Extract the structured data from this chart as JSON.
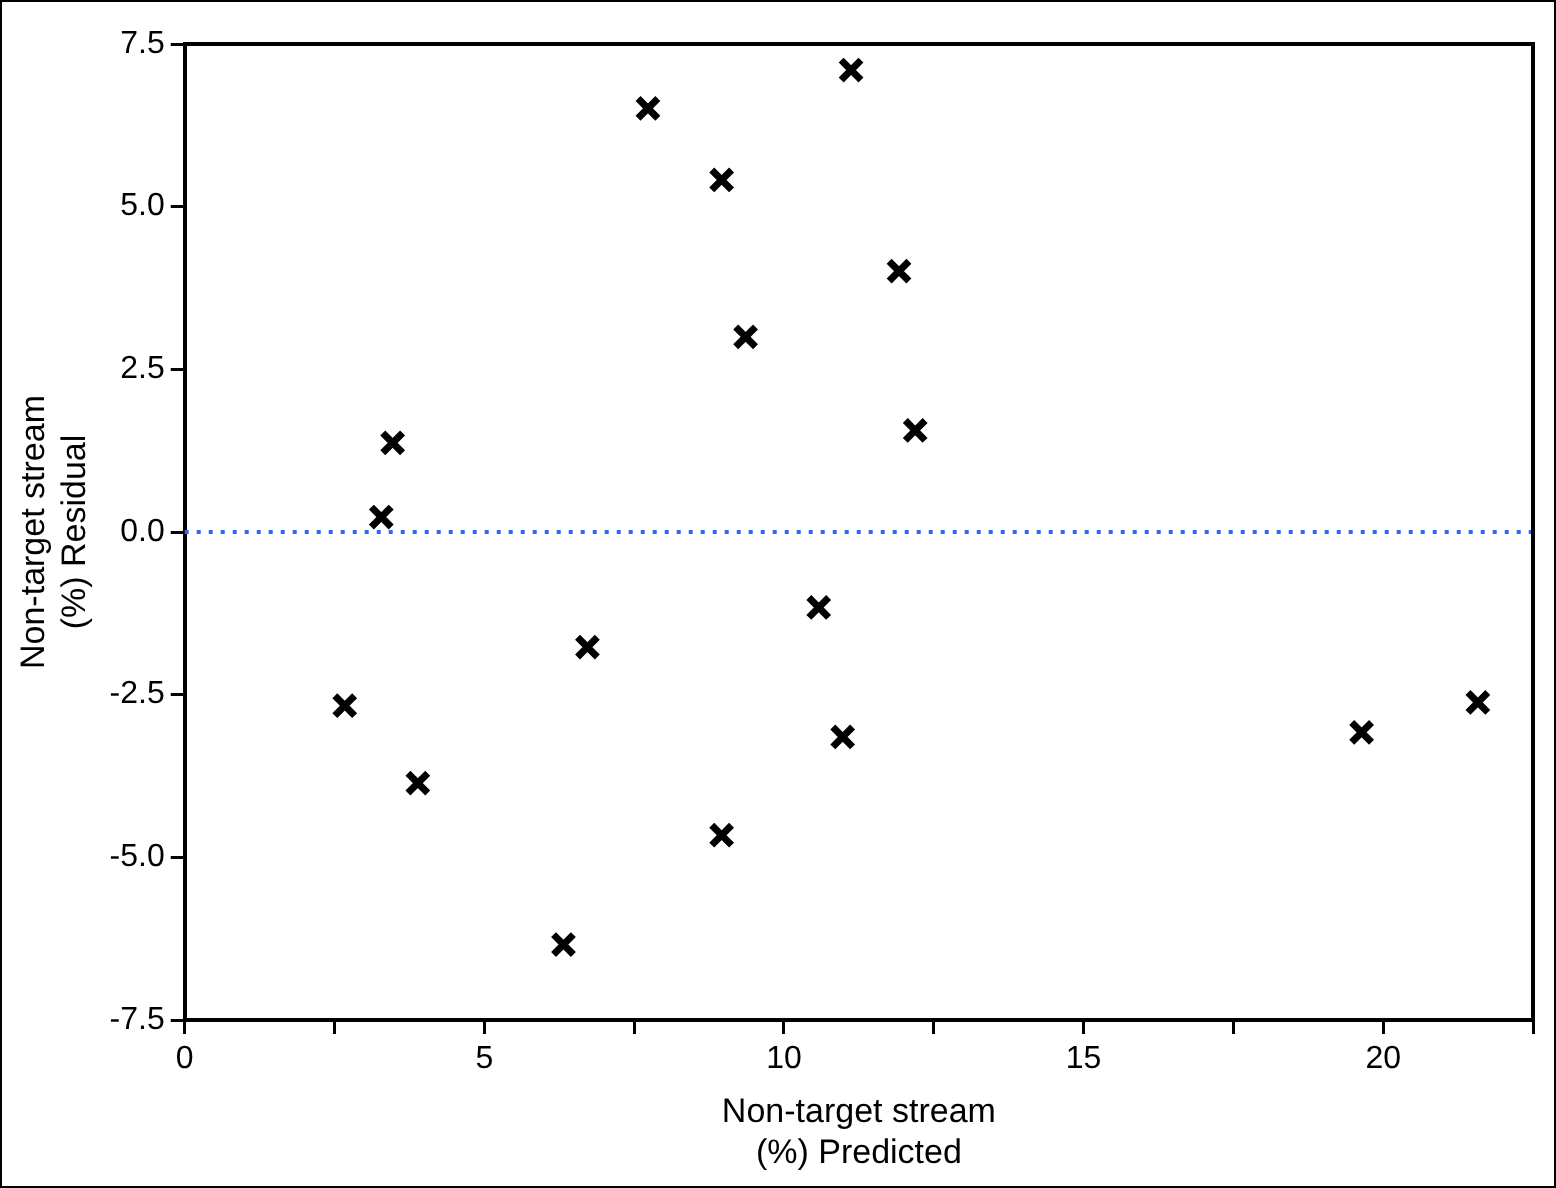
{
  "chart_data": {
    "type": "scatter",
    "xlabel": "Non-target stream\n(%) Predicted",
    "ylabel": "Non-target stream\n(%) Residual",
    "x": [
      2.67,
      3.28,
      3.47,
      3.89,
      6.32,
      6.72,
      7.73,
      8.96,
      8.96,
      9.36,
      10.58,
      10.98,
      11.12,
      11.92,
      12.19,
      19.64,
      21.58
    ],
    "series": [
      {
        "color": "#000000",
        "values": [
          -2.67,
          0.23,
          1.37,
          -3.86,
          -6.34,
          -1.77,
          6.51,
          5.41,
          -4.66,
          3.0,
          -1.16,
          -3.15,
          7.1,
          4.01,
          1.56,
          -3.08,
          -2.62
        ]
      }
    ],
    "marker": "cross",
    "grid": false,
    "legend": false,
    "xlim": [
      0,
      22.5
    ],
    "xticks": [
      0,
      {
        "value": 2.5,
        "label": null
      },
      5,
      {
        "value": 7.5,
        "label": null
      },
      10,
      {
        "value": 12.5,
        "label": null
      },
      15,
      {
        "value": 17.5,
        "label": null
      },
      20,
      {
        "value": 22.5,
        "label": null
      }
    ],
    "ylim": [
      -7.5,
      7.5
    ],
    "yticks": [
      {
        "value": -7.5,
        "label": "-7.5"
      },
      {
        "value": -5,
        "label": "-5.0"
      },
      {
        "value": -2.5,
        "label": "-2.5"
      },
      {
        "value": 0,
        "label": "0.0"
      },
      {
        "value": 2.5,
        "label": "2.5"
      },
      {
        "value": 5,
        "label": "5.0"
      },
      {
        "value": 7.5,
        "label": "7.5"
      }
    ],
    "ref_lines": [
      {
        "axis": "y",
        "value": 0,
        "color": "#3366ff",
        "line_style": "dotted"
      }
    ]
  }
}
